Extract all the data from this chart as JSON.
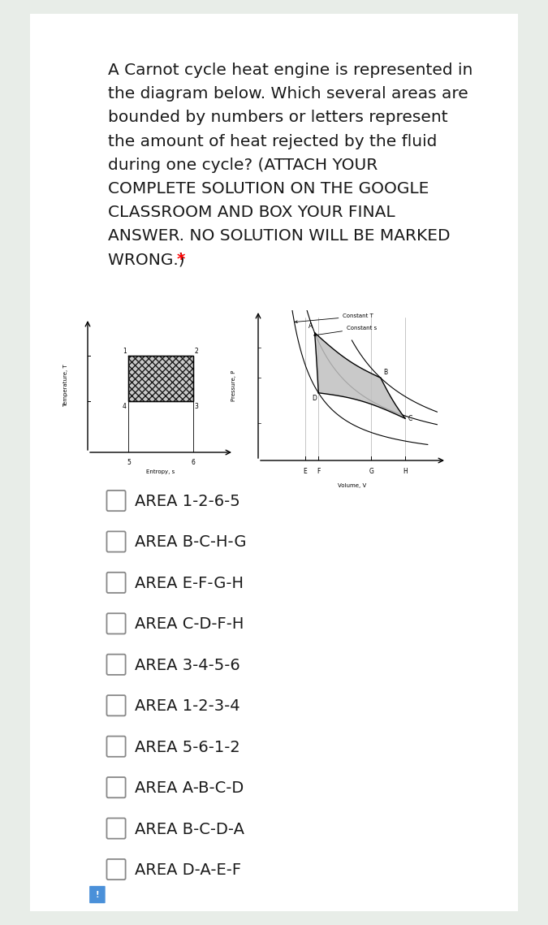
{
  "background_color": "#e8ede8",
  "card_color": "#ffffff",
  "question_text_lines": [
    "A Carnot cycle heat engine is represented in",
    "the diagram below. Which several areas are",
    "bounded by numbers or letters represent",
    "the amount of heat rejected by the fluid",
    "during one cycle? (ATTACH YOUR",
    "COMPLETE SOLUTION ON THE GOOGLE",
    "CLASSROOM AND BOX YOUR FINAL",
    "ANSWER. NO SOLUTION WILL BE MARKED",
    "WRONG.) "
  ],
  "asterisk": "*",
  "options": [
    "AREA 1-2-6-5",
    "AREA B-C-H-G",
    "AREA E-F-G-H",
    "AREA C-D-F-H",
    "AREA 3-4-5-6",
    "AREA 1-2-3-4",
    "AREA 5-6-1-2",
    "AREA A-B-C-D",
    "AREA B-C-D-A",
    "AREA D-A-E-F"
  ],
  "text_color": "#1a1a1a",
  "option_font_size": 14,
  "question_font_size": 14.5,
  "card_shadow_color": "#cccccc"
}
